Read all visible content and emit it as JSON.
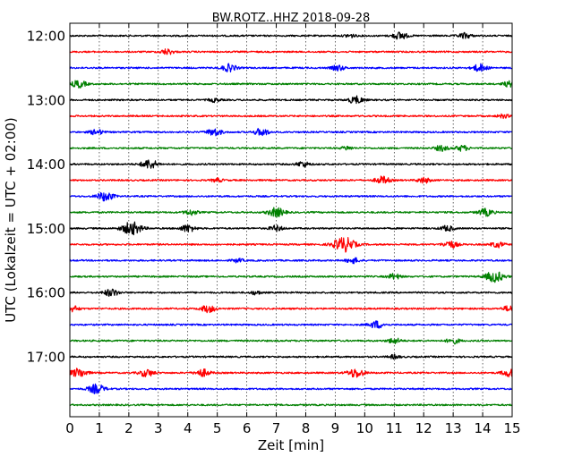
{
  "chart_data": {
    "type": "line",
    "title": "BW.ROTZ..HHZ 2018-09-28",
    "xlabel": "Zeit  [min]",
    "ylabel": "UTC (Lokalzeit = UTC + 02:00)",
    "xlim": [
      0,
      15
    ],
    "x_ticks": [
      0,
      1,
      2,
      3,
      4,
      5,
      6,
      7,
      8,
      9,
      10,
      11,
      12,
      13,
      14,
      15
    ],
    "x_tick_labels": [
      "0",
      "1",
      "2",
      "3",
      "4",
      "5",
      "6",
      "7",
      "8",
      "9",
      "10",
      "11",
      "12",
      "13",
      "14",
      "15"
    ],
    "y_tick_labels": [
      "12:00",
      "13:00",
      "14:00",
      "15:00",
      "16:00",
      "17:00"
    ],
    "y_tick_every_n_traces": 4,
    "trace_interval_minutes": 15,
    "trace_colors": [
      "#000000",
      "#ff0000",
      "#0000ff",
      "#008000"
    ],
    "grid": "vertical dotted",
    "traces": [
      {
        "start": "12:00",
        "events": [
          {
            "t": 11.2,
            "amp": 4
          },
          {
            "t": 13.4,
            "amp": 3
          },
          {
            "t": 9.5,
            "amp": 2
          }
        ]
      },
      {
        "start": "12:15",
        "events": [
          {
            "t": 3.3,
            "amp": 3
          }
        ]
      },
      {
        "start": "12:30",
        "events": [
          {
            "t": 5.4,
            "amp": 4
          },
          {
            "t": 9.1,
            "amp": 3
          },
          {
            "t": 13.9,
            "amp": 4
          }
        ]
      },
      {
        "start": "12:45",
        "events": [
          {
            "t": 0.3,
            "amp": 4
          },
          {
            "t": 14.9,
            "amp": 3
          }
        ]
      },
      {
        "start": "13:00",
        "events": [
          {
            "t": 9.7,
            "amp": 4
          },
          {
            "t": 4.9,
            "amp": 2
          }
        ]
      },
      {
        "start": "13:15",
        "events": [
          {
            "t": 14.7,
            "amp": 2
          }
        ]
      },
      {
        "start": "13:30",
        "events": [
          {
            "t": 4.9,
            "amp": 4
          },
          {
            "t": 6.5,
            "amp": 4
          },
          {
            "t": 0.9,
            "amp": 3
          }
        ]
      },
      {
        "start": "13:45",
        "events": [
          {
            "t": 12.6,
            "amp": 3
          },
          {
            "t": 13.3,
            "amp": 3
          },
          {
            "t": 9.4,
            "amp": 2
          }
        ]
      },
      {
        "start": "14:00",
        "events": [
          {
            "t": 2.7,
            "amp": 5
          },
          {
            "t": 7.9,
            "amp": 3
          }
        ]
      },
      {
        "start": "14:15",
        "events": [
          {
            "t": 10.6,
            "amp": 4
          },
          {
            "t": 12.0,
            "amp": 3
          },
          {
            "t": 5.0,
            "amp": 2
          }
        ]
      },
      {
        "start": "14:30",
        "events": [
          {
            "t": 1.2,
            "amp": 5
          }
        ]
      },
      {
        "start": "14:45",
        "events": [
          {
            "t": 7.0,
            "amp": 5
          },
          {
            "t": 4.1,
            "amp": 3
          },
          {
            "t": 14.1,
            "amp": 4
          }
        ]
      },
      {
        "start": "15:00",
        "events": [
          {
            "t": 2.1,
            "amp": 7
          },
          {
            "t": 4.0,
            "amp": 4
          },
          {
            "t": 7.0,
            "amp": 3
          },
          {
            "t": 12.8,
            "amp": 3
          }
        ]
      },
      {
        "start": "15:15",
        "events": [
          {
            "t": 9.3,
            "amp": 8
          },
          {
            "t": 12.9,
            "amp": 4
          },
          {
            "t": 14.5,
            "amp": 3
          }
        ]
      },
      {
        "start": "15:30",
        "events": [
          {
            "t": 9.6,
            "amp": 3
          },
          {
            "t": 5.7,
            "amp": 2
          }
        ]
      },
      {
        "start": "15:45",
        "events": [
          {
            "t": 14.4,
            "amp": 6
          },
          {
            "t": 11.0,
            "amp": 3
          }
        ]
      },
      {
        "start": "16:00",
        "events": [
          {
            "t": 1.4,
            "amp": 4
          },
          {
            "t": 6.3,
            "amp": 2
          }
        ]
      },
      {
        "start": "16:15",
        "events": [
          {
            "t": 4.7,
            "amp": 4
          },
          {
            "t": 0.1,
            "amp": 3
          },
          {
            "t": 14.9,
            "amp": 3
          }
        ]
      },
      {
        "start": "16:30",
        "events": [
          {
            "t": 10.4,
            "amp": 4
          }
        ]
      },
      {
        "start": "16:45",
        "events": [
          {
            "t": 11.0,
            "amp": 3
          },
          {
            "t": 13.0,
            "amp": 3
          }
        ]
      },
      {
        "start": "17:00",
        "events": [
          {
            "t": 11.0,
            "amp": 2
          }
        ]
      },
      {
        "start": "17:15",
        "events": [
          {
            "t": 0.3,
            "amp": 5
          },
          {
            "t": 2.6,
            "amp": 4
          },
          {
            "t": 4.5,
            "amp": 4
          },
          {
            "t": 9.7,
            "amp": 5
          },
          {
            "t": 14.9,
            "amp": 4
          }
        ]
      },
      {
        "start": "17:30",
        "events": [
          {
            "t": 0.9,
            "amp": 5
          }
        ]
      },
      {
        "start": "17:45",
        "events": []
      }
    ]
  }
}
